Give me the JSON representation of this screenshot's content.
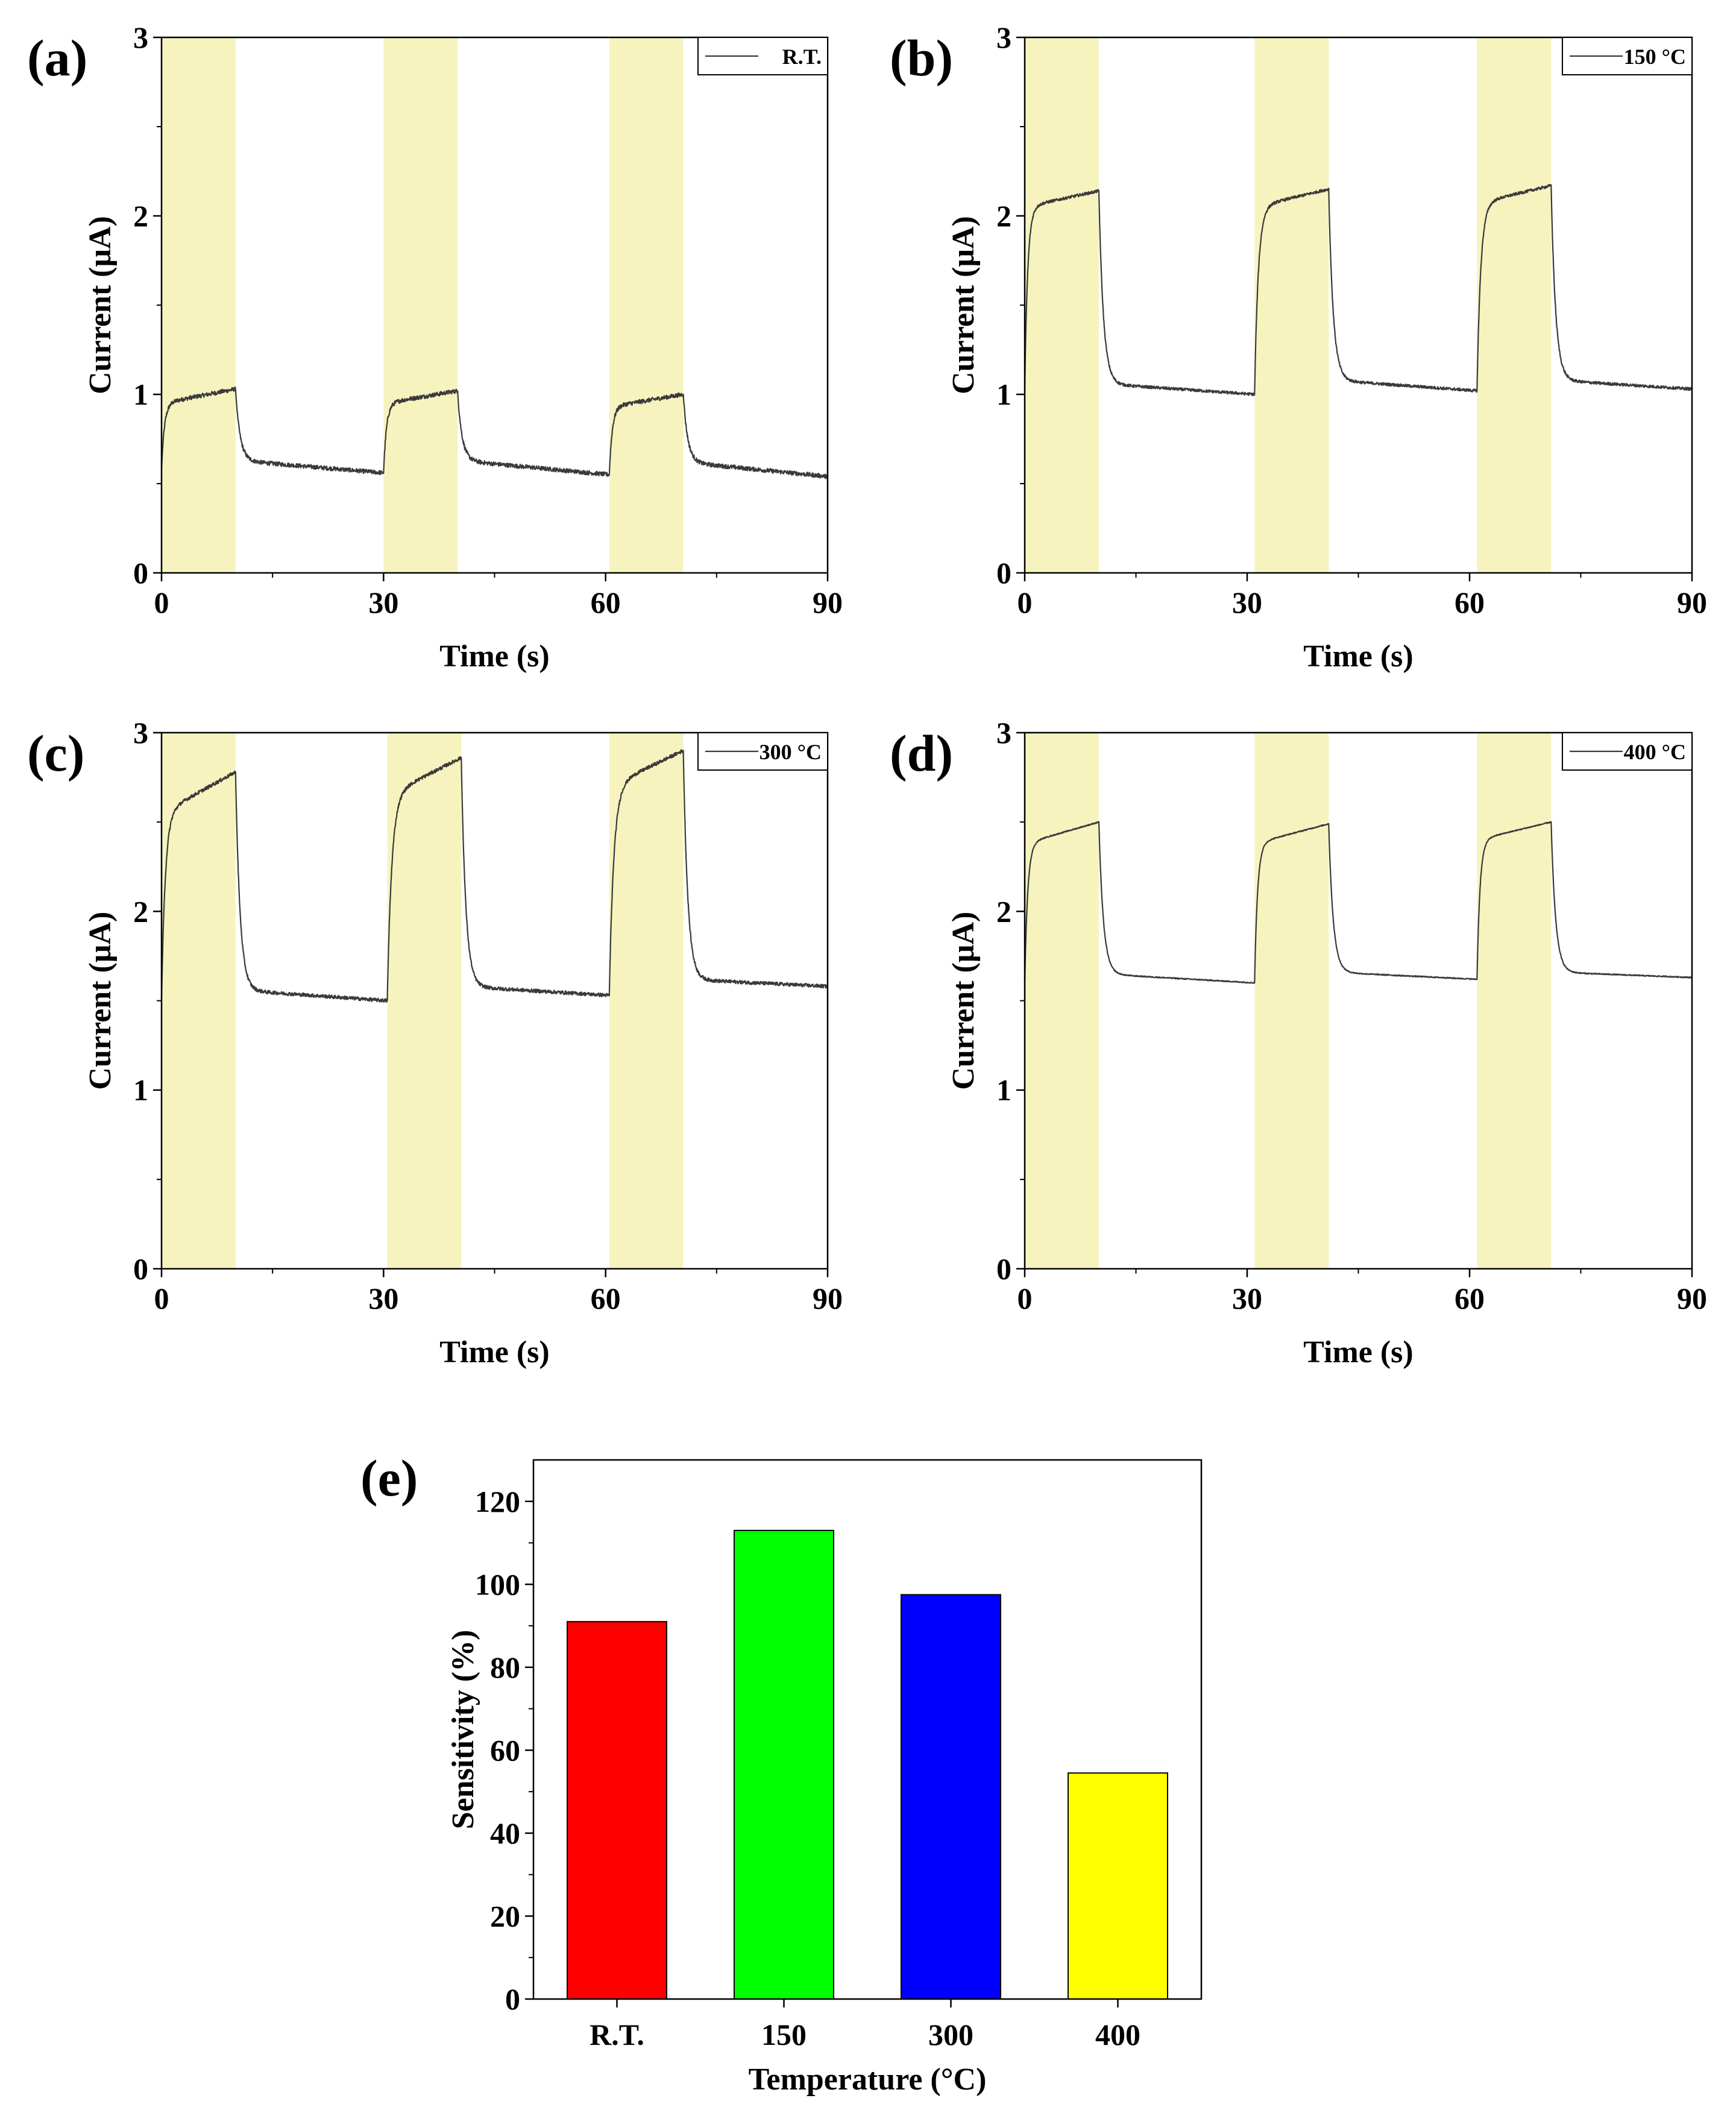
{
  "figure_title": "",
  "chart_data": [
    {
      "type": "line",
      "panel_label": "(a)",
      "title": "",
      "xlabel": "Time (s)",
      "ylabel": "Current (μA)",
      "xlim": [
        0,
        90
      ],
      "ylim": [
        0,
        3
      ],
      "x_ticks": [
        "0",
        "30",
        "60",
        "90"
      ],
      "y_ticks": [
        "0",
        "1",
        "2",
        "3"
      ],
      "legend": [
        "R.T."
      ],
      "legend_position": "top-right",
      "shaded_intervals": [
        [
          0,
          10
        ],
        [
          30,
          40
        ],
        [
          60.5,
          70.5
        ]
      ],
      "shade_color": "#f7f3bf",
      "line_color": "#3a3a3a",
      "noise": 0.012,
      "series": [
        {
          "name": "R.T.",
          "segments": [
            {
              "t0": 0,
              "t1": 10,
              "y0": 0.58,
              "yplat": 0.95,
              "yend": 1.03,
              "tau": 0.4
            },
            {
              "t0": 10,
              "t1": 30,
              "y0": 1.03,
              "yplat": 0.63,
              "yend": 0.56,
              "tau": 0.6
            },
            {
              "t0": 30,
              "t1": 40,
              "y0": 0.56,
              "yplat": 0.95,
              "yend": 1.02,
              "tau": 0.4
            },
            {
              "t0": 40,
              "t1": 60.5,
              "y0": 1.02,
              "yplat": 0.63,
              "yend": 0.55,
              "tau": 0.6
            },
            {
              "t0": 60.5,
              "t1": 70.5,
              "y0": 0.55,
              "yplat": 0.93,
              "yend": 1.0,
              "tau": 0.4
            },
            {
              "t0": 70.5,
              "t1": 90,
              "y0": 1.0,
              "yplat": 0.62,
              "yend": 0.54,
              "tau": 0.6
            }
          ]
        }
      ]
    },
    {
      "type": "line",
      "panel_label": "(b)",
      "title": "",
      "xlabel": "Time (s)",
      "ylabel": "Current (μA)",
      "xlim": [
        0,
        90
      ],
      "ylim": [
        0,
        3
      ],
      "x_ticks": [
        "0",
        "30",
        "60",
        "90"
      ],
      "y_ticks": [
        "0",
        "1",
        "2",
        "3"
      ],
      "legend": [
        "150 °C"
      ],
      "legend_position": "top-right",
      "shaded_intervals": [
        [
          0,
          10
        ],
        [
          31,
          41
        ],
        [
          61,
          71
        ]
      ],
      "shade_color": "#f7f3bf",
      "line_color": "#3a3a3a",
      "noise": 0.008,
      "series": [
        {
          "name": "150 °C",
          "segments": [
            {
              "t0": 0,
              "t1": 10,
              "y0": 1.03,
              "yplat": 2.05,
              "yend": 2.14,
              "tau": 0.4
            },
            {
              "t0": 10,
              "t1": 31,
              "y0": 2.14,
              "yplat": 1.06,
              "yend": 1.0,
              "tau": 0.6
            },
            {
              "t0": 31,
              "t1": 41,
              "y0": 1.0,
              "yplat": 2.05,
              "yend": 2.15,
              "tau": 0.5
            },
            {
              "t0": 41,
              "t1": 61,
              "y0": 2.15,
              "yplat": 1.08,
              "yend": 1.02,
              "tau": 0.6
            },
            {
              "t0": 61,
              "t1": 71,
              "y0": 1.02,
              "yplat": 2.07,
              "yend": 2.17,
              "tau": 0.5
            },
            {
              "t0": 71,
              "t1": 90,
              "y0": 2.17,
              "yplat": 1.08,
              "yend": 1.03,
              "tau": 0.6
            }
          ]
        }
      ]
    },
    {
      "type": "line",
      "panel_label": "(c)",
      "title": "",
      "xlabel": "Time (s)",
      "ylabel": "Current (μA)",
      "xlim": [
        0,
        90
      ],
      "ylim": [
        0,
        3
      ],
      "x_ticks": [
        "0",
        "30",
        "60",
        "90"
      ],
      "y_ticks": [
        "0",
        "1",
        "2",
        "3"
      ],
      "legend": [
        "300 °C"
      ],
      "legend_position": "top-right",
      "shaded_intervals": [
        [
          0,
          10
        ],
        [
          30.5,
          40.5
        ],
        [
          60.5,
          70.5
        ]
      ],
      "shade_color": "#f7f3bf",
      "line_color": "#3a3a3a",
      "noise": 0.01,
      "series": [
        {
          "name": "300 °C",
          "segments": [
            {
              "t0": 0,
              "t1": 10,
              "y0": 1.5,
              "yplat": 2.55,
              "yend": 2.78,
              "tau": 0.5
            },
            {
              "t0": 10,
              "t1": 30.5,
              "y0": 2.78,
              "yplat": 1.56,
              "yend": 1.5,
              "tau": 0.6
            },
            {
              "t0": 30.5,
              "t1": 40.5,
              "y0": 1.5,
              "yplat": 2.65,
              "yend": 2.86,
              "tau": 0.6
            },
            {
              "t0": 40.5,
              "t1": 60.5,
              "y0": 2.86,
              "yplat": 1.58,
              "yend": 1.53,
              "tau": 0.6
            },
            {
              "t0": 60.5,
              "t1": 70.5,
              "y0": 1.53,
              "yplat": 2.7,
              "yend": 2.9,
              "tau": 0.6
            },
            {
              "t0": 70.5,
              "t1": 90,
              "y0": 2.9,
              "yplat": 1.62,
              "yend": 1.58,
              "tau": 0.6
            }
          ]
        }
      ]
    },
    {
      "type": "line",
      "panel_label": "(d)",
      "title": "",
      "xlabel": "Time (s)",
      "ylabel": "Current (μA)",
      "xlim": [
        0,
        90
      ],
      "ylim": [
        0,
        3
      ],
      "x_ticks": [
        "0",
        "30",
        "60",
        "90"
      ],
      "y_ticks": [
        "0",
        "1",
        "2",
        "3"
      ],
      "legend": [
        "400 °C"
      ],
      "legend_position": "top-right",
      "shaded_intervals": [
        [
          0,
          10
        ],
        [
          31,
          41
        ],
        [
          61,
          71
        ]
      ],
      "shade_color": "#f7f3bf",
      "line_color": "#3a3a3a",
      "noise": 0.003,
      "series": [
        {
          "name": "400 °C",
          "segments": [
            {
              "t0": 0,
              "t1": 10,
              "y0": 1.6,
              "yplat": 2.38,
              "yend": 2.5,
              "tau": 0.4
            },
            {
              "t0": 10,
              "t1": 31,
              "y0": 2.5,
              "yplat": 1.65,
              "yend": 1.6,
              "tau": 0.6
            },
            {
              "t0": 31,
              "t1": 41,
              "y0": 1.6,
              "yplat": 2.38,
              "yend": 2.49,
              "tau": 0.4
            },
            {
              "t0": 41,
              "t1": 61,
              "y0": 2.49,
              "yplat": 1.66,
              "yend": 1.62,
              "tau": 0.6
            },
            {
              "t0": 61,
              "t1": 71,
              "y0": 1.62,
              "yplat": 2.4,
              "yend": 2.5,
              "tau": 0.4
            },
            {
              "t0": 71,
              "t1": 90,
              "y0": 2.5,
              "yplat": 1.66,
              "yend": 1.63,
              "tau": 0.6
            }
          ]
        }
      ]
    },
    {
      "type": "bar",
      "panel_label": "(e)",
      "title": "",
      "xlabel": "Temperature (°C)",
      "ylabel": "Sensitivity (%)",
      "categories": [
        "R.T.",
        "150",
        "300",
        "400"
      ],
      "values": [
        91,
        113,
        97.5,
        54.5
      ],
      "colors": [
        "#ff0000",
        "#00ff00",
        "#0000ff",
        "#ffff00"
      ],
      "ylim": [
        0,
        130
      ],
      "y_ticks": [
        "0",
        "20",
        "40",
        "60",
        "80",
        "100",
        "120"
      ]
    }
  ]
}
